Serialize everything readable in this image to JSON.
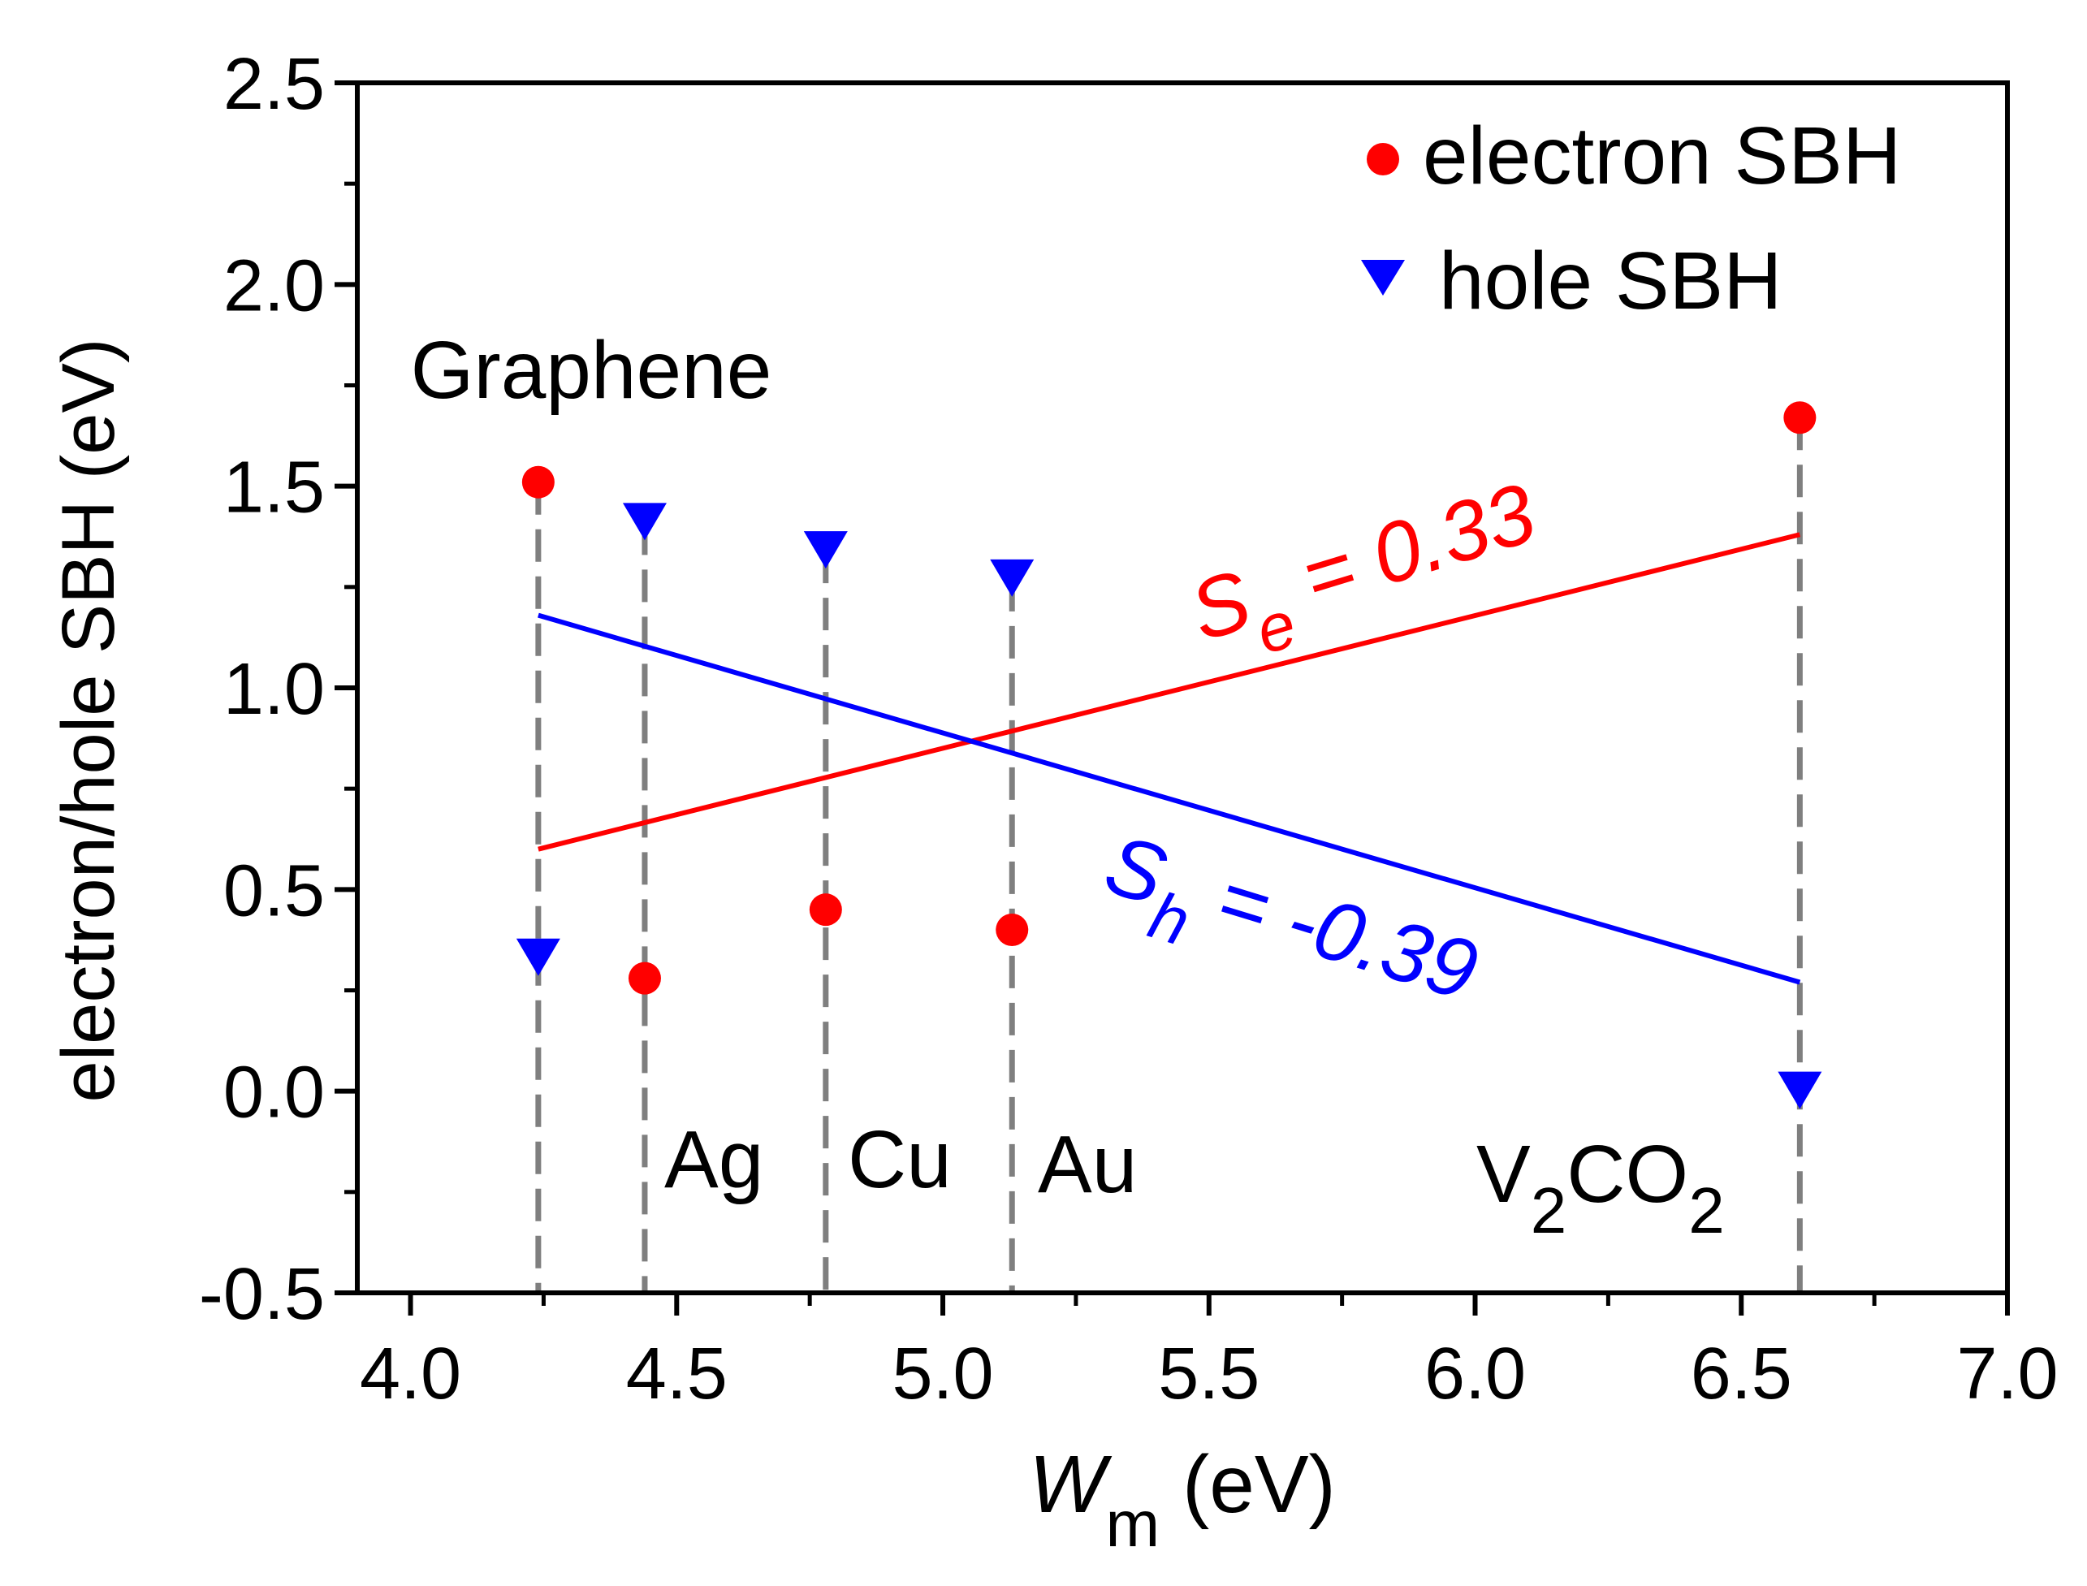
{
  "chart_data": {
    "type": "scatter",
    "xlabel_main": "W",
    "xlabel_sub": "m",
    "xlabel_unit": "(eV)",
    "ylabel": "electron/hole SBH (eV)",
    "xlim": [
      3.9,
      7.0
    ],
    "ylim": [
      -0.5,
      2.5
    ],
    "x_ticks": [
      "4.0",
      "4.5",
      "5.0",
      "5.5",
      "6.0",
      "6.5",
      "7.0"
    ],
    "y_ticks": [
      "-0.5",
      "0.0",
      "0.5",
      "1.0",
      "1.5",
      "2.0",
      "2.5"
    ],
    "materials": [
      {
        "name": "Graphene",
        "sub": "",
        "tail": "",
        "wm": 4.24
      },
      {
        "name": "Ag",
        "sub": "",
        "tail": "",
        "wm": 4.44
      },
      {
        "name": "Cu",
        "sub": "",
        "tail": "",
        "wm": 4.78
      },
      {
        "name": "Au",
        "sub": "",
        "tail": "",
        "wm": 5.13
      },
      {
        "name": "V",
        "sub": "2",
        "tail": "CO",
        "sub2": "2",
        "wm": 6.61
      }
    ],
    "series": [
      {
        "name": "electron SBH",
        "marker": "circle",
        "color": "#ff0000",
        "x": [
          4.24,
          4.44,
          4.78,
          5.13,
          6.61
        ],
        "y": [
          1.51,
          0.28,
          0.45,
          0.4,
          1.67
        ]
      },
      {
        "name": "hole SBH",
        "marker": "triangle-down",
        "color": "#0000ff",
        "x": [
          4.24,
          4.44,
          4.78,
          5.13,
          6.61
        ],
        "y": [
          0.33,
          1.41,
          1.34,
          1.27,
          0.0
        ]
      }
    ],
    "fits": [
      {
        "series": "electron SBH",
        "color": "#ff0000",
        "x": [
          4.24,
          6.61
        ],
        "y": [
          0.6,
          1.38
        ]
      },
      {
        "series": "hole SBH",
        "color": "#0000ff",
        "x": [
          4.24,
          6.61
        ],
        "y": [
          1.18,
          0.27
        ]
      }
    ],
    "annotations": {
      "se": {
        "main": "S",
        "sub": "e",
        "rest": " = 0.33"
      },
      "sh": {
        "main": "S",
        "sub": "h",
        "rest": " = -0.39"
      }
    },
    "legend_position": "top-right"
  }
}
